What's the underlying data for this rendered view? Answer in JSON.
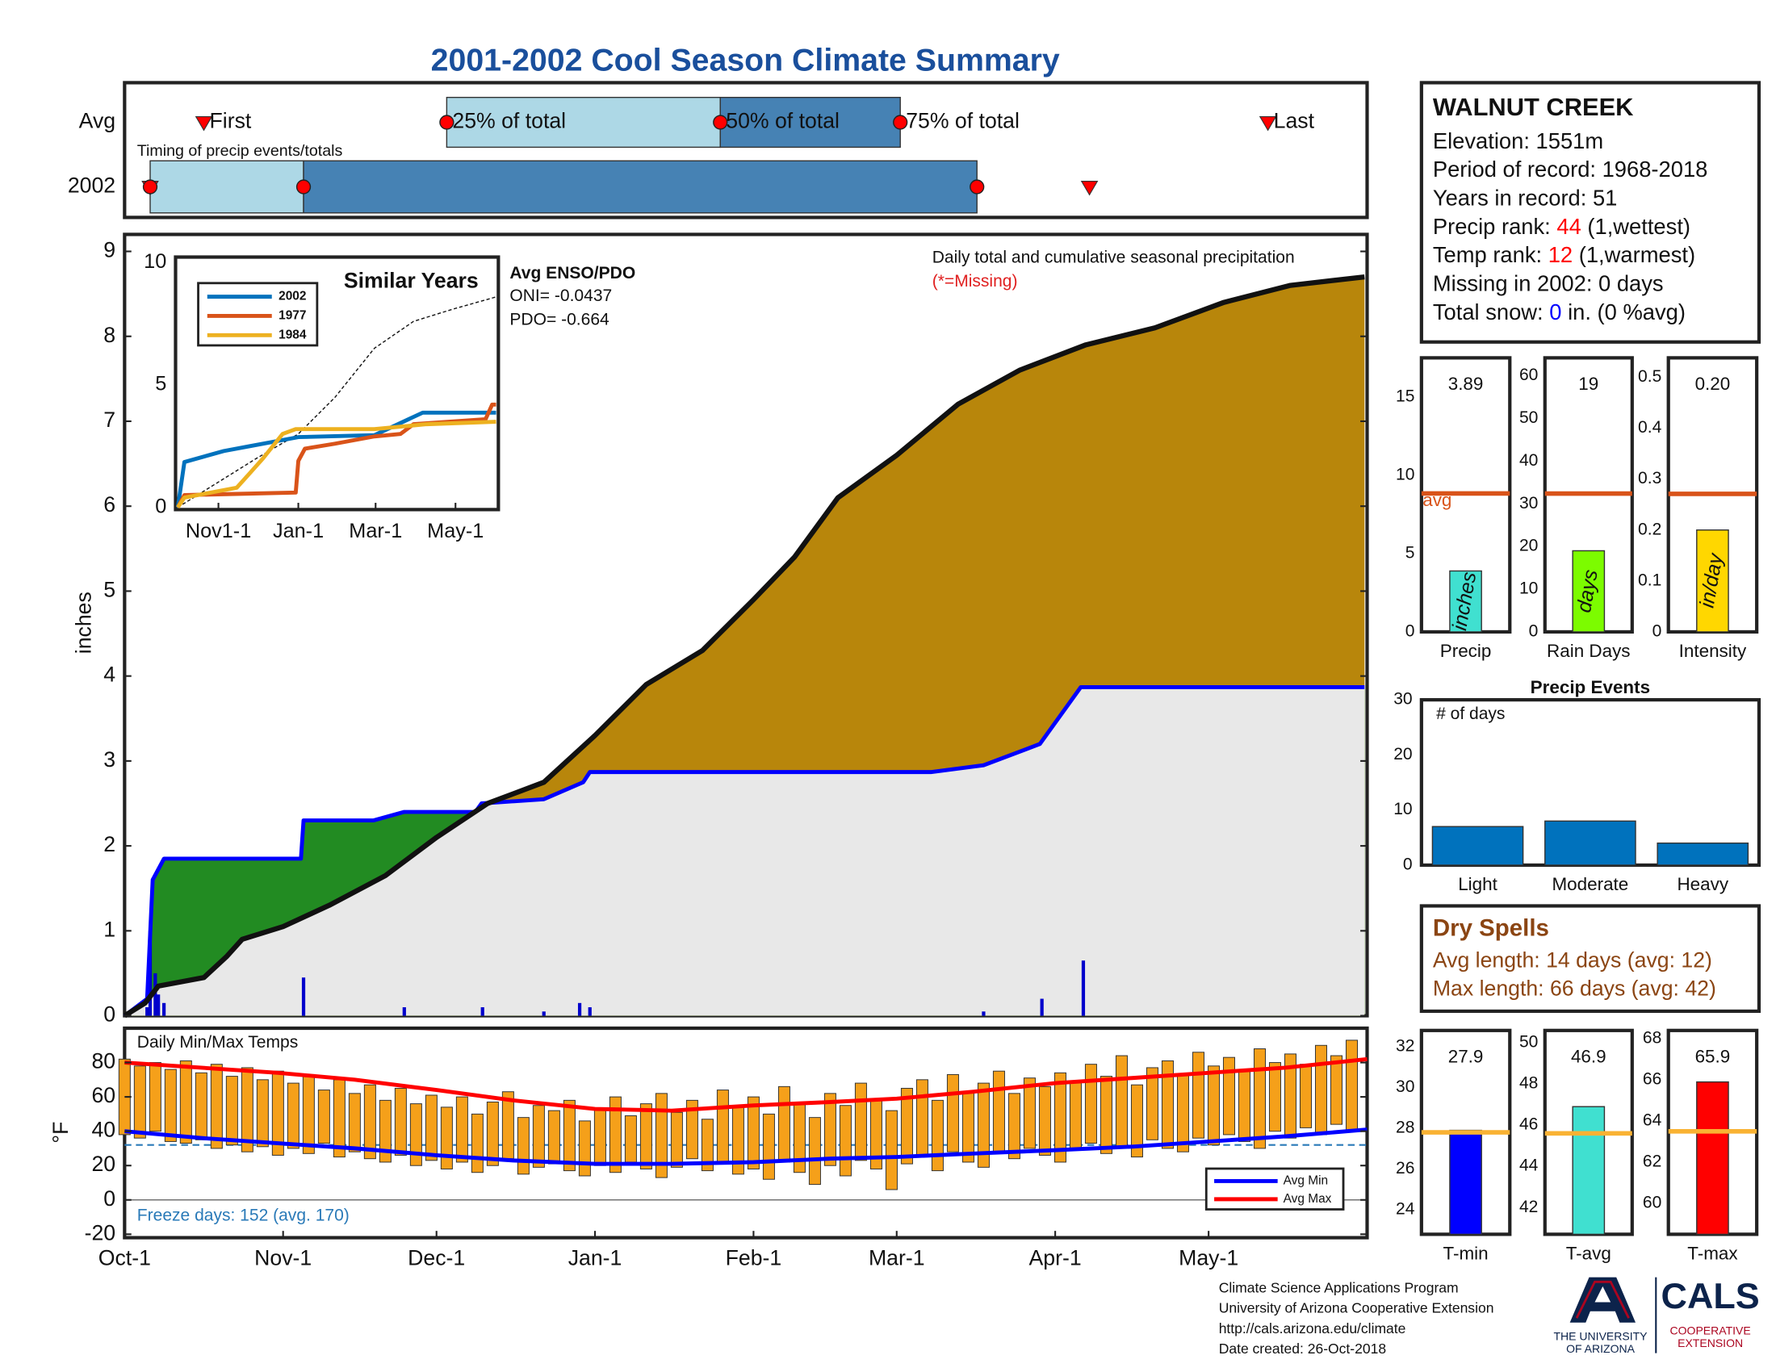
{
  "title": "2001-2002 Cool Season Climate Summary",
  "chart_data": [
    {
      "type": "timing",
      "title": "Timing of precip events/totals",
      "xlim": [
        0,
        243
      ],
      "events": [
        "First",
        "25% of total",
        "50% of total",
        "75% of total",
        "Last"
      ],
      "series": [
        {
          "name": "Avg",
          "values": [
            15.5,
            63,
            116.5,
            151.7,
            223.6
          ]
        },
        {
          "name": "2002",
          "values": [
            5,
            5,
            35,
            166.7,
            188.7
          ]
        }
      ],
      "light_color": "#add8e6",
      "dark_color": "#4682b4",
      "marker_color": "#ff0000"
    },
    {
      "type": "cumulative",
      "title": "Daily total and cumulative seasonal precipitation",
      "subtitle": "(*=Missing)",
      "ylabel": "inches",
      "xlim": [
        0,
        243
      ],
      "ylim": [
        0,
        9.2
      ],
      "yticks": [
        0,
        1,
        2,
        3,
        4,
        5,
        6,
        7,
        8,
        9
      ],
      "average": {
        "color": "#111111",
        "x": [
          0,
          4,
          6.6,
          15.5,
          20,
          23,
          31,
          40,
          51,
          61,
          71,
          82,
          92,
          102,
          113,
          123,
          131,
          139.5,
          151,
          163,
          175,
          188,
          201.5,
          215,
          228,
          242.5
        ],
        "values": [
          0,
          0.15,
          0.35,
          0.45,
          0.7,
          0.9,
          1.05,
          1.3,
          1.65,
          2.1,
          2.5,
          2.75,
          3.3,
          3.9,
          4.3,
          4.9,
          5.4,
          6.1,
          6.6,
          7.2,
          7.6,
          7.9,
          8.1,
          8.4,
          8.6,
          8.7
        ]
      },
      "current": {
        "color": "#0000ff",
        "x": [
          0,
          4.4,
          5.5,
          7.7,
          34.5,
          35,
          48.7,
          54.7,
          68.6,
          69.8,
          82,
          89.7,
          91,
          157.7,
          168,
          179,
          187,
          242.5
        ],
        "values": [
          0,
          0.2,
          1.6,
          1.85,
          1.85,
          2.3,
          2.3,
          2.4,
          2.4,
          2.5,
          2.55,
          2.75,
          2.87,
          2.87,
          2.95,
          3.2,
          3.87,
          3.87
        ]
      },
      "daily": {
        "color": "#0000cc",
        "x": [
          4.4,
          5,
          6,
          6.6,
          7.7,
          35,
          54.7,
          70,
          82,
          89,
          91,
          168,
          179.4,
          187.5
        ],
        "values": [
          0.1,
          1.0,
          0.5,
          0.25,
          0.15,
          0.45,
          0.1,
          0.1,
          0.05,
          0.15,
          0.1,
          0.05,
          0.2,
          0.65
        ]
      },
      "above_color": "#228b22",
      "below_color": "#b8860b",
      "base_color": "#e8e8e8"
    },
    {
      "type": "line",
      "title": "Similar Years",
      "xlim": [
        0,
        243
      ],
      "xticks": [
        {
          "value": 31,
          "label": "Nov1-1"
        },
        {
          "value": 92,
          "label": "Jan-1"
        },
        {
          "value": 151,
          "label": "Mar-1"
        },
        {
          "value": 212,
          "label": "May-1"
        }
      ],
      "ylim": [
        0,
        10
      ],
      "yticks": [
        0,
        5,
        10
      ],
      "series": [
        {
          "name": "2002",
          "color": "#0072bd",
          "x": [
            0,
            5,
            35,
            55,
            92,
            150,
            187,
            243
          ],
          "values": [
            0,
            1.85,
            2.3,
            2.5,
            2.87,
            2.95,
            3.87,
            3.87
          ]
        },
        {
          "name": "1977",
          "color": "#d95319",
          "x": [
            0,
            5,
            90,
            92,
            97,
            120,
            150,
            170,
            180,
            235,
            240,
            243
          ],
          "values": [
            0,
            0.5,
            0.6,
            1.9,
            2.4,
            2.6,
            2.9,
            3.0,
            3.4,
            3.6,
            4.2,
            4.2
          ]
        },
        {
          "name": "1984",
          "color": "#edb120",
          "x": [
            0,
            5,
            25,
            45,
            55,
            65,
            80,
            90,
            150,
            190,
            243
          ],
          "values": [
            0,
            0.4,
            0.6,
            0.8,
            1.4,
            2.0,
            3.0,
            3.2,
            3.2,
            3.4,
            3.5
          ]
        }
      ],
      "average": {
        "x": [
          0,
          30,
          60,
          92,
          120,
          150,
          180,
          210,
          243
        ],
        "values": [
          0,
          1.0,
          2.0,
          3.0,
          4.5,
          6.5,
          7.6,
          8.1,
          8.6
        ]
      },
      "notes": {
        "title": "Avg ENSO/PDO",
        "lines": [
          "ONI= -0.0437",
          "PDO= -0.664"
        ]
      }
    },
    {
      "type": "range",
      "title": "Daily Min/Max Temps",
      "ylabel": "°F",
      "xlim": [
        0,
        243
      ],
      "xticks": [
        {
          "value": 0,
          "label": "Oct-1"
        },
        {
          "value": 31,
          "label": "Nov-1"
        },
        {
          "value": 61,
          "label": "Dec-1"
        },
        {
          "value": 92,
          "label": "Jan-1"
        },
        {
          "value": 123,
          "label": "Feb-1"
        },
        {
          "value": 151,
          "label": "Mar-1"
        },
        {
          "value": 182,
          "label": "Apr-1"
        },
        {
          "value": 212,
          "label": "May-1"
        }
      ],
      "ylim": [
        -22,
        100
      ],
      "yticks": [
        -20,
        0,
        20,
        40,
        60,
        80
      ],
      "daily": {
        "color": "#f5a01a",
        "x": [
          0,
          3,
          6,
          9,
          12,
          15,
          18,
          21,
          24,
          27,
          30,
          33,
          36,
          39,
          42,
          45,
          48,
          51,
          54,
          57,
          60,
          63,
          66,
          69,
          72,
          75,
          78,
          81,
          84,
          87,
          90,
          93,
          96,
          99,
          102,
          105,
          108,
          111,
          114,
          117,
          120,
          123,
          126,
          129,
          132,
          135,
          138,
          141,
          144,
          147,
          150,
          153,
          156,
          159,
          162,
          165,
          168,
          171,
          174,
          177,
          180,
          183,
          186,
          189,
          192,
          195,
          198,
          201,
          204,
          207,
          210,
          213,
          216,
          219,
          222,
          225,
          228,
          231,
          234,
          237,
          240
        ],
        "lows": [
          38,
          36,
          40,
          34,
          33,
          35,
          30,
          32,
          28,
          31,
          26,
          30,
          27,
          33,
          25,
          28,
          24,
          22,
          26,
          20,
          23,
          18,
          22,
          16,
          20,
          24,
          15,
          19,
          21,
          17,
          14,
          20,
          16,
          22,
          18,
          13,
          19,
          24,
          17,
          21,
          15,
          18,
          12,
          22,
          16,
          9,
          20,
          14,
          23,
          18,
          6,
          21,
          25,
          17,
          28,
          22,
          19,
          27,
          24,
          30,
          26,
          22,
          29,
          33,
          27,
          31,
          25,
          35,
          30,
          28,
          36,
          32,
          38,
          34,
          30,
          40,
          36,
          42,
          38,
          44,
          40
        ],
        "highs": [
          82,
          78,
          80,
          76,
          81,
          74,
          79,
          72,
          77,
          70,
          75,
          68,
          73,
          64,
          70,
          62,
          67,
          58,
          65,
          56,
          61,
          54,
          60,
          50,
          57,
          63,
          48,
          55,
          52,
          58,
          46,
          53,
          60,
          49,
          56,
          62,
          51,
          58,
          47,
          64,
          55,
          60,
          50,
          66,
          57,
          48,
          62,
          55,
          68,
          59,
          52,
          65,
          70,
          58,
          73,
          63,
          68,
          75,
          62,
          71,
          66,
          74,
          69,
          79,
          72,
          84,
          67,
          77,
          81,
          73,
          86,
          78,
          83,
          76,
          88,
          80,
          85,
          79,
          90,
          84,
          93
        ]
      },
      "series": [
        {
          "name": "Avg Min",
          "color": "#0000ff",
          "x": [
            0,
            15,
            30,
            45,
            61,
            76,
            92,
            107,
            123,
            138,
            151,
            166,
            182,
            197,
            212,
            227,
            243
          ],
          "values": [
            40,
            36,
            33,
            30,
            26,
            23,
            21,
            21,
            22,
            24,
            25,
            27,
            29,
            31,
            34,
            37,
            41
          ]
        },
        {
          "name": "Avg Max",
          "color": "#ff0000",
          "x": [
            0,
            15,
            30,
            45,
            61,
            76,
            92,
            107,
            123,
            138,
            151,
            166,
            182,
            197,
            212,
            227,
            243
          ],
          "values": [
            80,
            77,
            74,
            70,
            64,
            58,
            53,
            52,
            55,
            57,
            59,
            63,
            68,
            71,
            74,
            77,
            82
          ]
        }
      ],
      "freeze_line": 32,
      "freeze_color": "#2a7ab8",
      "annotation": "Freeze days: 152 (avg. 170)"
    },
    {
      "type": "summary_bar",
      "category": "Precip",
      "values": [
        3.89
      ],
      "avg": 8.84,
      "avg_label": "avg",
      "unit": "inches",
      "color": "#40e0d0",
      "avg_color": "#d95319",
      "ylim": [
        0,
        17.5
      ],
      "yticks": [
        0,
        5,
        10,
        15
      ]
    },
    {
      "type": "summary_bar",
      "category": "Rain Days",
      "values": [
        19
      ],
      "avg": 32.4,
      "unit": "days",
      "color": "#7cfc00",
      "avg_color": "#d95319",
      "ylim": [
        0,
        64.2
      ],
      "yticks": [
        0,
        10,
        20,
        30,
        40,
        50,
        60
      ]
    },
    {
      "type": "summary_bar",
      "category": "Intensity",
      "values": [
        0.2
      ],
      "value_labels": [
        "0.20"
      ],
      "avg": 0.271,
      "unit": "in/day",
      "color": "#ffd700",
      "avg_color": "#d95319",
      "ylim": [
        0,
        0.538
      ],
      "yticks": [
        0,
        0.1,
        0.2,
        0.3,
        0.4,
        0.5
      ]
    },
    {
      "type": "bar",
      "title": "Precip Events",
      "ylabel": "# of days",
      "categories": [
        "Light",
        "Moderate",
        "Heavy"
      ],
      "values": [
        7,
        8,
        4
      ],
      "color": "#0072bd",
      "ylim": [
        0,
        30
      ],
      "yticks": [
        0,
        10,
        20,
        30
      ]
    },
    {
      "type": "summary_bar",
      "category": "T-min",
      "values": [
        27.9
      ],
      "avg": 27.8,
      "color": "#0000ff",
      "avg_color": "#f9b233",
      "ylim": [
        22.8,
        32.8
      ],
      "yticks": [
        24,
        26,
        28,
        30,
        32
      ]
    },
    {
      "type": "summary_bar",
      "category": "T-avg",
      "values": [
        46.9
      ],
      "avg": 45.6,
      "color": "#40e0d0",
      "avg_color": "#f9b233",
      "ylim": [
        40.7,
        50.6
      ],
      "yticks": [
        42,
        44,
        46,
        48,
        50
      ]
    },
    {
      "type": "summary_bar",
      "category": "T-max",
      "values": [
        65.9
      ],
      "avg": 63.5,
      "color": "#ff0000",
      "avg_color": "#f9b233",
      "ylim": [
        58.5,
        68.4
      ],
      "yticks": [
        60,
        62,
        64,
        66,
        68
      ]
    }
  ],
  "station": {
    "name": "WALNUT CREEK",
    "lines": [
      [
        "Elevation: 1551m"
      ],
      [
        "Period of record: 1968-2018"
      ],
      [
        "Years in record: 51"
      ],
      [
        "Precip rank: ",
        {
          "text": "44",
          "color": "#ff0000"
        },
        " (1,wettest)"
      ],
      [
        "Temp rank: ",
        {
          "text": "12",
          "color": "#ff0000"
        },
        " (1,warmest)"
      ],
      [
        "Missing in 2002: 0 days"
      ],
      [
        "Total snow: ",
        {
          "text": "0",
          "color": "#0000ff"
        },
        " in. (0 %avg)"
      ]
    ]
  },
  "dry_spells": {
    "title": "Dry Spells",
    "color": "#8b4513",
    "lines": [
      "Avg length: 14 days (avg: 12)",
      "Max length: 66 days (avg: 42)"
    ]
  },
  "footer": {
    "lines": [
      "Climate Science Applications Program",
      "University of Arizona Cooperative Extension",
      "http://cals.arizona.edu/climate",
      "Date created: 26-Oct-2018"
    ]
  },
  "logos": {
    "university": [
      "THE UNIVERSITY",
      "OF ARIZONA"
    ],
    "cals": "CALS",
    "extension": [
      "COOPERATIVE",
      "EXTENSION"
    ]
  }
}
